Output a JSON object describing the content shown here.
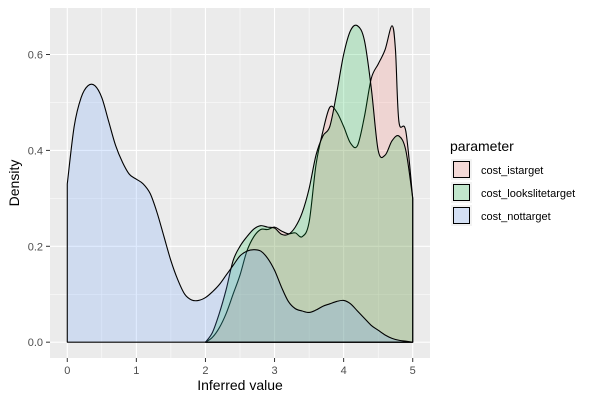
{
  "chart_data": {
    "type": "area",
    "title": "",
    "xlabel": "Inferred value",
    "ylabel": "Density",
    "xlim": [
      -0.25,
      5.25
    ],
    "ylim": [
      -0.033,
      0.697
    ],
    "x_ticks": [
      0,
      1,
      2,
      3,
      4,
      5
    ],
    "y_ticks": [
      0.0,
      0.2,
      0.4,
      0.6
    ],
    "y_tick_labels": [
      "0.0",
      "0.2",
      "0.4",
      "0.6"
    ],
    "grid": true,
    "legend_position": "right",
    "legend_title": "parameter",
    "series": [
      {
        "name": "cost_istarget",
        "fill": "#F8766D",
        "x": [
          2.0,
          2.1,
          2.2,
          2.3,
          2.4,
          2.5,
          2.6,
          2.7,
          2.8,
          2.9,
          3.0,
          3.1,
          3.2,
          3.3,
          3.4,
          3.5,
          3.6,
          3.7,
          3.8,
          3.9,
          4.0,
          4.1,
          4.2,
          4.3,
          4.4,
          4.5,
          4.6,
          4.7,
          4.75,
          4.8,
          4.9,
          5.0
        ],
        "y": [
          0.0,
          0.01,
          0.03,
          0.06,
          0.1,
          0.14,
          0.19,
          0.22,
          0.235,
          0.235,
          0.24,
          0.232,
          0.226,
          0.228,
          0.22,
          0.25,
          0.37,
          0.44,
          0.49,
          0.48,
          0.45,
          0.415,
          0.41,
          0.47,
          0.55,
          0.58,
          0.61,
          0.66,
          0.61,
          0.46,
          0.44,
          0.3
        ]
      },
      {
        "name": "cost_lookslitetarget",
        "fill": "#00BA38",
        "x": [
          2.0,
          2.1,
          2.2,
          2.3,
          2.4,
          2.5,
          2.6,
          2.7,
          2.8,
          2.9,
          3.0,
          3.1,
          3.2,
          3.3,
          3.4,
          3.5,
          3.6,
          3.7,
          3.8,
          3.9,
          4.0,
          4.1,
          4.2,
          4.3,
          4.4,
          4.5,
          4.6,
          4.7,
          4.8,
          4.9,
          5.0
        ],
        "y": [
          0.0,
          0.02,
          0.06,
          0.11,
          0.17,
          0.2,
          0.22,
          0.236,
          0.243,
          0.24,
          0.238,
          0.225,
          0.225,
          0.24,
          0.27,
          0.32,
          0.39,
          0.43,
          0.45,
          0.52,
          0.6,
          0.65,
          0.66,
          0.63,
          0.53,
          0.4,
          0.39,
          0.42,
          0.43,
          0.4,
          0.3
        ]
      },
      {
        "name": "cost_nottarget",
        "fill": "#619CFF",
        "x": [
          0.0,
          0.1,
          0.2,
          0.3,
          0.4,
          0.5,
          0.6,
          0.7,
          0.8,
          0.9,
          1.0,
          1.1,
          1.2,
          1.3,
          1.4,
          1.5,
          1.6,
          1.7,
          1.8,
          1.9,
          2.0,
          2.1,
          2.2,
          2.3,
          2.4,
          2.5,
          2.6,
          2.7,
          2.8,
          2.9,
          3.0,
          3.1,
          3.2,
          3.3,
          3.4,
          3.5,
          3.6,
          3.7,
          3.8,
          3.9,
          4.0,
          4.1,
          4.2,
          4.3,
          4.4,
          4.5,
          4.6,
          4.7,
          4.8,
          4.9,
          5.0
        ],
        "y": [
          0.33,
          0.45,
          0.51,
          0.535,
          0.535,
          0.51,
          0.46,
          0.41,
          0.375,
          0.35,
          0.34,
          0.33,
          0.31,
          0.27,
          0.22,
          0.17,
          0.13,
          0.1,
          0.088,
          0.087,
          0.093,
          0.105,
          0.12,
          0.14,
          0.16,
          0.18,
          0.19,
          0.193,
          0.19,
          0.175,
          0.15,
          0.115,
          0.085,
          0.07,
          0.065,
          0.062,
          0.067,
          0.075,
          0.08,
          0.085,
          0.087,
          0.08,
          0.065,
          0.05,
          0.035,
          0.025,
          0.015,
          0.008,
          0.004,
          0.002,
          0.0
        ]
      }
    ]
  }
}
